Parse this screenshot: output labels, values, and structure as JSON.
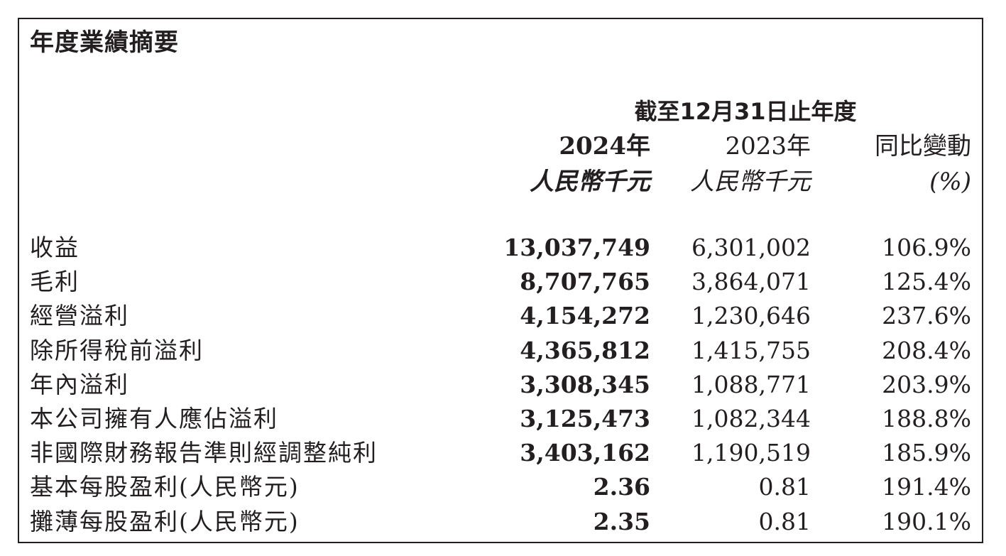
{
  "title": "年度業績摘要",
  "header": {
    "period": "截至12月31日止年度",
    "col1_year": "2024年",
    "col1_unit": "人民幣千元",
    "col2_year": "2023年",
    "col2_unit": "人民幣千元",
    "col3_label": "同比變動",
    "col3_unit": "(%)"
  },
  "rows": [
    {
      "label": "收益",
      "v2024": "13,037,749",
      "v2023": "6,301,002",
      "change": "106.9%"
    },
    {
      "label": "毛利",
      "v2024": "8,707,765",
      "v2023": "3,864,071",
      "change": "125.4%"
    },
    {
      "label": "經營溢利",
      "v2024": "4,154,272",
      "v2023": "1,230,646",
      "change": "237.6%"
    },
    {
      "label": "除所得稅前溢利",
      "v2024": "4,365,812",
      "v2023": "1,415,755",
      "change": "208.4%"
    },
    {
      "label": "年內溢利",
      "v2024": "3,308,345",
      "v2023": "1,088,771",
      "change": "203.9%"
    },
    {
      "label": "本公司擁有人應佔溢利",
      "v2024": "3,125,473",
      "v2023": "1,082,344",
      "change": "188.8%"
    },
    {
      "label": "非國際財務報告準則經調整純利",
      "v2024": "3,403,162",
      "v2023": "1,190,519",
      "change": "185.9%"
    },
    {
      "label": "基本每股盈利(人民幣元)",
      "v2024": "2.36",
      "v2023": "0.81",
      "change": "191.4%"
    },
    {
      "label": "攤薄每股盈利(人民幣元)",
      "v2024": "2.35",
      "v2023": "0.81",
      "change": "190.1%"
    }
  ]
}
